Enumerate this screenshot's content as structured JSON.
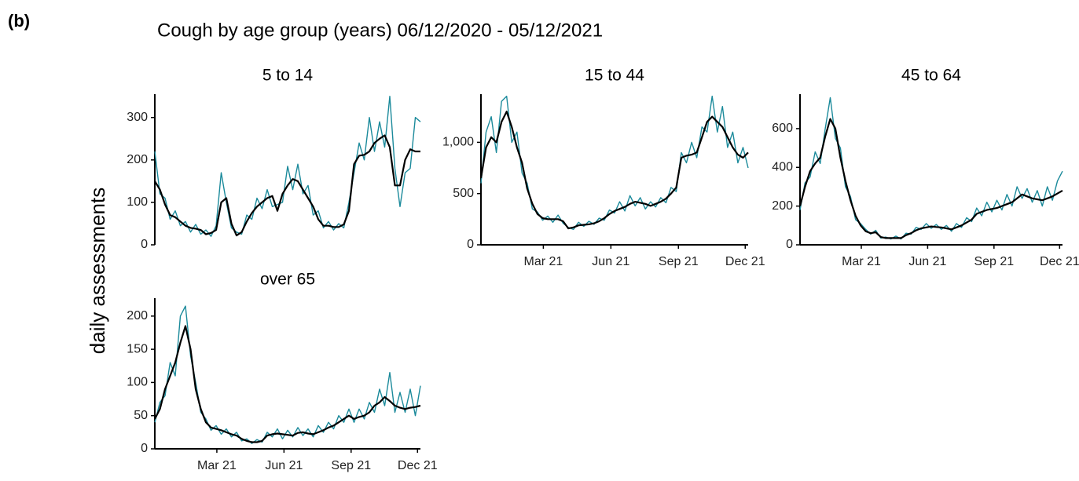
{
  "panel_label": "(b)",
  "title": "Cough by age group (years) 06/12/2020 - 05/12/2021",
  "ylabel": "daily assessments",
  "chart_data": [
    {
      "type": "line",
      "title": "5 to 14",
      "x": [
        0,
        7,
        14,
        21,
        28,
        35,
        42,
        49,
        56,
        63,
        70,
        77,
        84,
        91,
        98,
        105,
        112,
        119,
        126,
        133,
        140,
        147,
        154,
        161,
        168,
        175,
        182,
        189,
        196,
        203,
        210,
        217,
        224,
        231,
        238,
        245,
        252,
        259,
        266,
        273,
        280,
        287,
        294,
        301,
        308,
        315,
        322,
        329,
        336,
        343,
        350,
        357,
        364
      ],
      "xlim": [
        0,
        364
      ],
      "ylim": [
        0,
        355
      ],
      "yticks": [
        0,
        100,
        200,
        300
      ],
      "series": [
        {
          "color": "#1b8a9b",
          "values": [
            220,
            120,
            110,
            60,
            80,
            45,
            55,
            30,
            48,
            25,
            35,
            20,
            45,
            170,
            100,
            40,
            30,
            25,
            70,
            60,
            110,
            85,
            130,
            90,
            95,
            100,
            185,
            130,
            190,
            120,
            140,
            70,
            80,
            40,
            55,
            35,
            50,
            40,
            100,
            170,
            240,
            200,
            300,
            220,
            290,
            230,
            350,
            180,
            90,
            170,
            180,
            300,
            290
          ]
        },
        {
          "color": "#000000",
          "values": [
            150,
            130,
            95,
            70,
            65,
            55,
            45,
            40,
            38,
            35,
            25,
            28,
            35,
            100,
            110,
            50,
            22,
            30,
            55,
            75,
            90,
            100,
            110,
            115,
            80,
            120,
            140,
            155,
            150,
            130,
            110,
            90,
            60,
            45,
            45,
            42,
            42,
            48,
            80,
            190,
            210,
            212,
            220,
            240,
            250,
            258,
            230,
            140,
            140,
            200,
            225,
            220,
            220
          ]
        }
      ]
    },
    {
      "type": "line",
      "title": "15 to 44",
      "x": [
        0,
        7,
        14,
        21,
        28,
        35,
        42,
        49,
        56,
        63,
        70,
        77,
        84,
        91,
        98,
        105,
        112,
        119,
        126,
        133,
        140,
        147,
        154,
        161,
        168,
        175,
        182,
        189,
        196,
        203,
        210,
        217,
        224,
        231,
        238,
        245,
        252,
        259,
        266,
        273,
        280,
        287,
        294,
        301,
        308,
        315,
        322,
        329,
        336,
        343,
        350,
        357,
        364
      ],
      "xlim": [
        0,
        364
      ],
      "ylim": [
        0,
        1470
      ],
      "yticks": [
        0,
        500,
        {
          "value": 1000,
          "label": "1,000"
        }
      ],
      "xticks": [
        {
          "value": 85,
          "label": "Mar 21"
        },
        {
          "value": 177,
          "label": "Jun 21"
        },
        {
          "value": 269,
          "label": "Sep 21"
        },
        {
          "value": 360,
          "label": "Dec 21"
        }
      ],
      "series": [
        {
          "color": "#1b8a9b",
          "values": [
            600,
            1100,
            1250,
            900,
            1400,
            1450,
            1000,
            1100,
            700,
            600,
            350,
            320,
            240,
            280,
            220,
            290,
            210,
            170,
            150,
            220,
            180,
            230,
            200,
            260,
            240,
            340,
            310,
            420,
            330,
            480,
            380,
            460,
            350,
            420,
            370,
            460,
            410,
            560,
            520,
            900,
            800,
            1000,
            850,
            1150,
            1100,
            1450,
            1100,
            1350,
            950,
            1100,
            800,
            950,
            750
          ]
        },
        {
          "color": "#000000",
          "values": [
            650,
            950,
            1050,
            1000,
            1200,
            1300,
            1150,
            950,
            800,
            550,
            400,
            300,
            260,
            250,
            250,
            250,
            230,
            160,
            170,
            190,
            195,
            200,
            210,
            230,
            260,
            300,
            330,
            350,
            370,
            400,
            420,
            410,
            400,
            380,
            400,
            420,
            450,
            500,
            560,
            850,
            870,
            880,
            900,
            1050,
            1200,
            1250,
            1200,
            1150,
            1050,
            950,
            880,
            850,
            900
          ]
        }
      ]
    },
    {
      "type": "line",
      "title": "45 to 64",
      "x": [
        0,
        7,
        14,
        21,
        28,
        35,
        42,
        49,
        56,
        63,
        70,
        77,
        84,
        91,
        98,
        105,
        112,
        119,
        126,
        133,
        140,
        147,
        154,
        161,
        168,
        175,
        182,
        189,
        196,
        203,
        210,
        217,
        224,
        231,
        238,
        245,
        252,
        259,
        266,
        273,
        280,
        287,
        294,
        301,
        308,
        315,
        322,
        329,
        336,
        343,
        350,
        357,
        364
      ],
      "xlim": [
        0,
        364
      ],
      "ylim": [
        0,
        778
      ],
      "yticks": [
        0,
        200,
        400,
        600
      ],
      "xticks": [
        {
          "value": 85,
          "label": "Mar 21"
        },
        {
          "value": 177,
          "label": "Jun 21"
        },
        {
          "value": 269,
          "label": "Sep 21"
        },
        {
          "value": 360,
          "label": "Dec 21"
        }
      ],
      "series": [
        {
          "color": "#1b8a9b",
          "values": [
            180,
            320,
            350,
            480,
            420,
            600,
            760,
            550,
            500,
            300,
            250,
            130,
            110,
            80,
            55,
            75,
            35,
            40,
            30,
            45,
            30,
            60,
            55,
            90,
            80,
            110,
            85,
            105,
            80,
            100,
            70,
            110,
            90,
            140,
            120,
            190,
            150,
            220,
            170,
            230,
            180,
            260,
            200,
            300,
            240,
            290,
            220,
            280,
            200,
            300,
            230,
            330,
            380
          ]
        },
        {
          "color": "#000000",
          "values": [
            200,
            300,
            380,
            420,
            450,
            560,
            650,
            600,
            450,
            330,
            230,
            150,
            100,
            70,
            60,
            65,
            40,
            35,
            35,
            35,
            35,
            50,
            60,
            75,
            85,
            90,
            95,
            92,
            90,
            85,
            80,
            90,
            100,
            115,
            130,
            160,
            170,
            180,
            185,
            190,
            200,
            210,
            220,
            240,
            260,
            250,
            240,
            235,
            230,
            240,
            250,
            265,
            280
          ]
        }
      ]
    },
    {
      "type": "line",
      "title": "over 65",
      "x": [
        0,
        7,
        14,
        21,
        28,
        35,
        42,
        49,
        56,
        63,
        70,
        77,
        84,
        91,
        98,
        105,
        112,
        119,
        126,
        133,
        140,
        147,
        154,
        161,
        168,
        175,
        182,
        189,
        196,
        203,
        210,
        217,
        224,
        231,
        238,
        245,
        252,
        259,
        266,
        273,
        280,
        287,
        294,
        301,
        308,
        315,
        322,
        329,
        336,
        343,
        350,
        357,
        364
      ],
      "xlim": [
        0,
        364
      ],
      "ylim": [
        0,
        227
      ],
      "yticks": [
        0,
        50,
        100,
        150,
        200
      ],
      "xticks": [
        {
          "value": 85,
          "label": "Mar 21"
        },
        {
          "value": 177,
          "label": "Jun 21"
        },
        {
          "value": 269,
          "label": "Sep 21"
        },
        {
          "value": 360,
          "label": "Dec 21"
        }
      ],
      "series": [
        {
          "color": "#1b8a9b",
          "values": [
            40,
            70,
            80,
            130,
            110,
            200,
            215,
            140,
            100,
            55,
            45,
            28,
            35,
            22,
            30,
            18,
            25,
            12,
            15,
            8,
            14,
            10,
            25,
            18,
            30,
            15,
            28,
            18,
            32,
            20,
            30,
            18,
            35,
            25,
            40,
            30,
            50,
            40,
            60,
            40,
            60,
            45,
            70,
            55,
            90,
            65,
            115,
            55,
            85,
            55,
            90,
            50,
            95
          ]
        },
        {
          "color": "#000000",
          "values": [
            45,
            60,
            90,
            110,
            130,
            160,
            185,
            150,
            90,
            60,
            40,
            32,
            30,
            28,
            25,
            22,
            20,
            15,
            12,
            10,
            10,
            12,
            20,
            22,
            23,
            22,
            21,
            20,
            24,
            25,
            23,
            22,
            25,
            28,
            32,
            35,
            40,
            45,
            50,
            45,
            48,
            50,
            55,
            65,
            70,
            78,
            72,
            65,
            62,
            60,
            62,
            63,
            65
          ]
        }
      ]
    }
  ]
}
